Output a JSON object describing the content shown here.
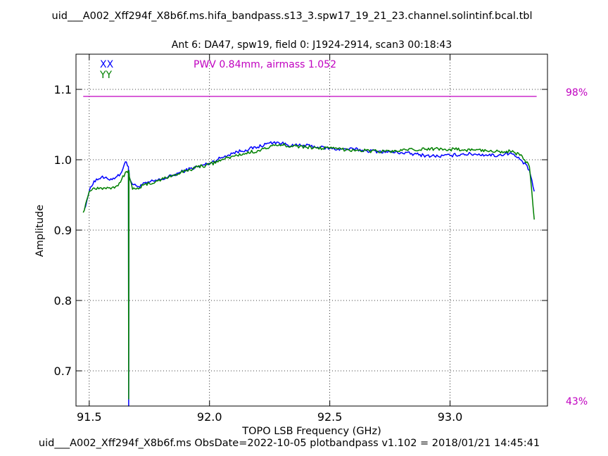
{
  "page": {
    "top_title": "uid___A002_Xff294f_X8b6f.ms.hifa_bandpass.s13_3.spw17_19_21_23.channel.solintinf.bcal.tbl",
    "subtitle": "Ant 6: DA47,  spw19,  field 0: J1924-2914,  scan3  00:18:43",
    "footer": "uid___A002_Xff294f_X8b6f.ms  ObsDate=2022-10-05   plotbandpass v1.102 = 2018/01/21 14:45:41"
  },
  "chart_data": {
    "type": "line",
    "xlabel": "TOPO LSB Frequency (GHz)",
    "ylabel": "Amplitude",
    "xlim": [
      91.445,
      93.405
    ],
    "ylim": [
      0.65,
      1.15
    ],
    "xticks": [
      91.5,
      92.0,
      92.5,
      93.0
    ],
    "xtick_labels": [
      "91.5",
      "92.0",
      "92.5",
      "93.0"
    ],
    "yticks": [
      0.7,
      0.8,
      0.9,
      1.0,
      1.1
    ],
    "ytick_labels": [
      "0.7",
      "0.8",
      "0.9",
      "1.0",
      "1.1"
    ],
    "grid": true,
    "legend": {
      "placement": "top-left",
      "entries": [
        {
          "label": "XX",
          "color": "#0000ff"
        },
        {
          "label": "YY",
          "color": "#008000"
        }
      ]
    },
    "annotation": {
      "text": "PWV 0.84mm, airmass 1.052",
      "color": "#c000c0"
    },
    "atmosphere": {
      "color": "#c000c0",
      "value": 1.09,
      "x_range": [
        91.475,
        93.36
      ],
      "right_labels": {
        "top": "98%",
        "bottom": "43%"
      }
    },
    "series": [
      {
        "name": "XX",
        "color": "#0000ff",
        "x": [
          91.48,
          91.5,
          91.52,
          91.55,
          91.58,
          91.61,
          91.63,
          91.65,
          91.663,
          91.664,
          91.665,
          91.667,
          91.68,
          91.7,
          91.75,
          91.8,
          91.85,
          91.9,
          91.95,
          92.0,
          92.05,
          92.1,
          92.15,
          92.2,
          92.25,
          92.28,
          92.3,
          92.35,
          92.4,
          92.45,
          92.5,
          92.55,
          92.6,
          92.65,
          92.7,
          92.75,
          92.8,
          92.85,
          92.9,
          92.95,
          93.0,
          93.05,
          93.1,
          93.15,
          93.2,
          93.25,
          93.3,
          93.33,
          93.35
        ],
        "y": [
          0.93,
          0.955,
          0.97,
          0.975,
          0.972,
          0.975,
          0.98,
          0.997,
          0.99,
          0.65,
          0.985,
          0.975,
          0.965,
          0.962,
          0.968,
          0.972,
          0.978,
          0.985,
          0.99,
          0.995,
          1.003,
          1.01,
          1.014,
          1.018,
          1.024,
          1.025,
          1.023,
          1.02,
          1.02,
          1.018,
          1.016,
          1.015,
          1.015,
          1.013,
          1.012,
          1.011,
          1.01,
          1.008,
          1.006,
          1.005,
          1.006,
          1.008,
          1.008,
          1.007,
          1.006,
          1.01,
          0.998,
          0.985,
          0.955
        ]
      },
      {
        "name": "YY",
        "color": "#008000",
        "x": [
          91.475,
          91.5,
          91.52,
          91.55,
          91.58,
          91.61,
          91.63,
          91.65,
          91.663,
          91.664,
          91.665,
          91.667,
          91.68,
          91.7,
          91.75,
          91.8,
          91.85,
          91.9,
          91.95,
          92.0,
          92.05,
          92.1,
          92.15,
          92.2,
          92.25,
          92.28,
          92.3,
          92.35,
          92.4,
          92.45,
          92.5,
          92.55,
          92.6,
          92.65,
          92.7,
          92.75,
          92.8,
          92.85,
          92.9,
          92.95,
          93.0,
          93.05,
          93.1,
          93.15,
          93.2,
          93.25,
          93.3,
          93.33,
          93.35
        ],
        "y": [
          0.925,
          0.955,
          0.96,
          0.96,
          0.96,
          0.962,
          0.968,
          0.982,
          0.985,
          0.66,
          0.983,
          0.975,
          0.958,
          0.96,
          0.966,
          0.972,
          0.978,
          0.984,
          0.99,
          0.993,
          1.0,
          1.005,
          1.009,
          1.013,
          1.018,
          1.02,
          1.021,
          1.02,
          1.018,
          1.017,
          1.016,
          1.015,
          1.014,
          1.013,
          1.012,
          1.012,
          1.013,
          1.014,
          1.015,
          1.016,
          1.015,
          1.014,
          1.014,
          1.013,
          1.012,
          1.012,
          1.005,
          0.99,
          0.915
        ]
      }
    ]
  }
}
